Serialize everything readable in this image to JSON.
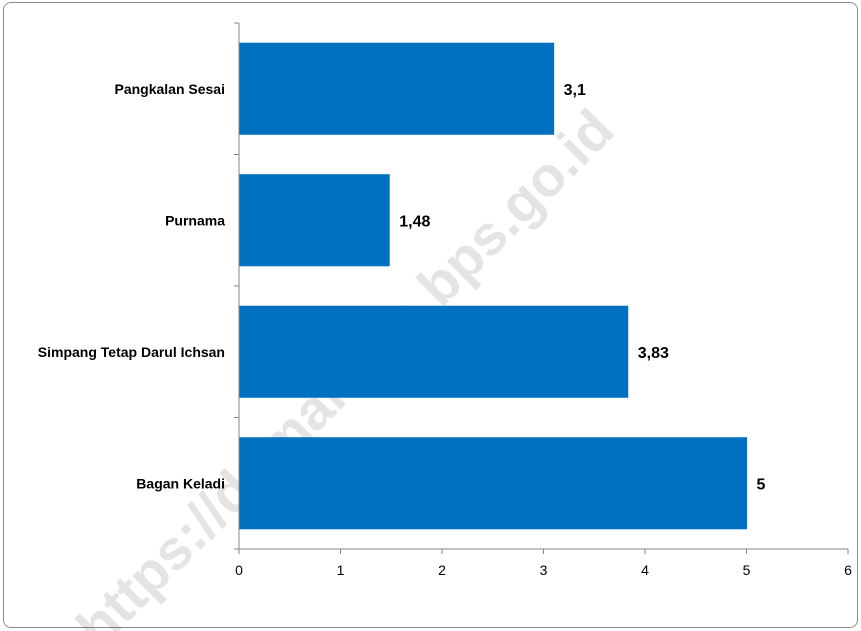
{
  "watermark": "https://dumaikota.bps.go.id",
  "chart_data": {
    "type": "bar",
    "orientation": "horizontal",
    "categories": [
      "Pangkalan Sesai",
      "Purnama",
      "Simpang Tetap Darul Ichsan",
      "Bagan Keladi"
    ],
    "values": [
      3.1,
      1.48,
      3.83,
      5
    ],
    "value_labels": [
      "3,1",
      "1,48",
      "3,83",
      "5"
    ],
    "x_ticks": [
      "0",
      "1",
      "2",
      "3",
      "4",
      "5",
      "6"
    ],
    "xlim": [
      0,
      6
    ],
    "grid": false,
    "bar_color": "#0070c0"
  }
}
